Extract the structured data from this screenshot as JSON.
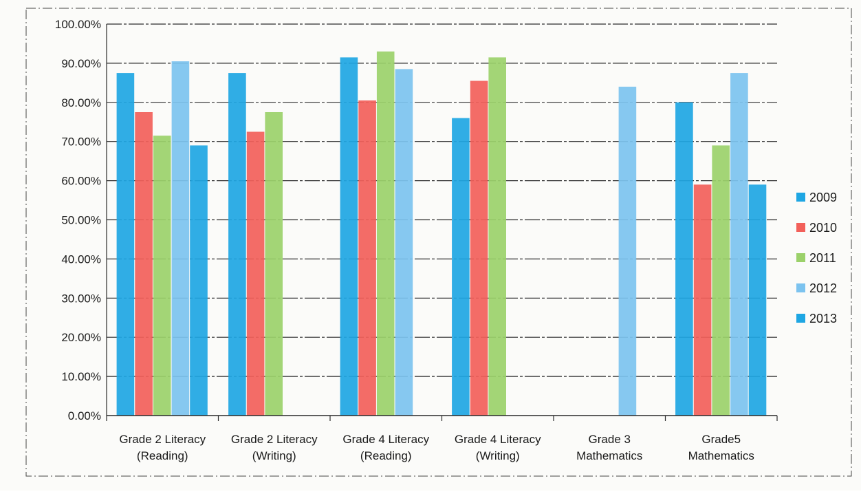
{
  "chart_data": {
    "type": "bar",
    "categories": [
      [
        "Grade 2 Literacy",
        "(Reading)"
      ],
      [
        "Grade 2 Literacy",
        "(Writing)"
      ],
      [
        "Grade 4 Literacy",
        "(Reading)"
      ],
      [
        "Grade 4 Literacy",
        "(Writing)"
      ],
      [
        "Grade 3",
        "Mathematics"
      ],
      [
        "Grade5",
        "Mathematics"
      ]
    ],
    "series": [
      {
        "name": "2009",
        "color": "#1ea6e3",
        "values": [
          87.5,
          87.5,
          91.5,
          76,
          null,
          80
        ]
      },
      {
        "name": "2010",
        "color": "#f2605a",
        "values": [
          77.5,
          72.5,
          80.5,
          85.5,
          null,
          59
        ]
      },
      {
        "name": "2011",
        "color": "#9bd16a",
        "values": [
          71.5,
          77.5,
          93,
          91.5,
          null,
          69
        ]
      },
      {
        "name": "2012",
        "color": "#7cc3ef",
        "values": [
          90.5,
          null,
          88.5,
          null,
          84,
          87.5
        ]
      },
      {
        "name": "2013",
        "color": "#1ea6e3",
        "values": [
          69,
          null,
          null,
          null,
          null,
          59
        ]
      }
    ],
    "y_ticks": [
      "0.00%",
      "10.00%",
      "20.00%",
      "30.00%",
      "40.00%",
      "50.00%",
      "60.00%",
      "70.00%",
      "80.00%",
      "90.00%",
      "100.00%"
    ],
    "ylim": [
      0,
      100
    ],
    "title": "",
    "xlabel": "",
    "ylabel": "",
    "grid": true,
    "legend_position": "right"
  }
}
